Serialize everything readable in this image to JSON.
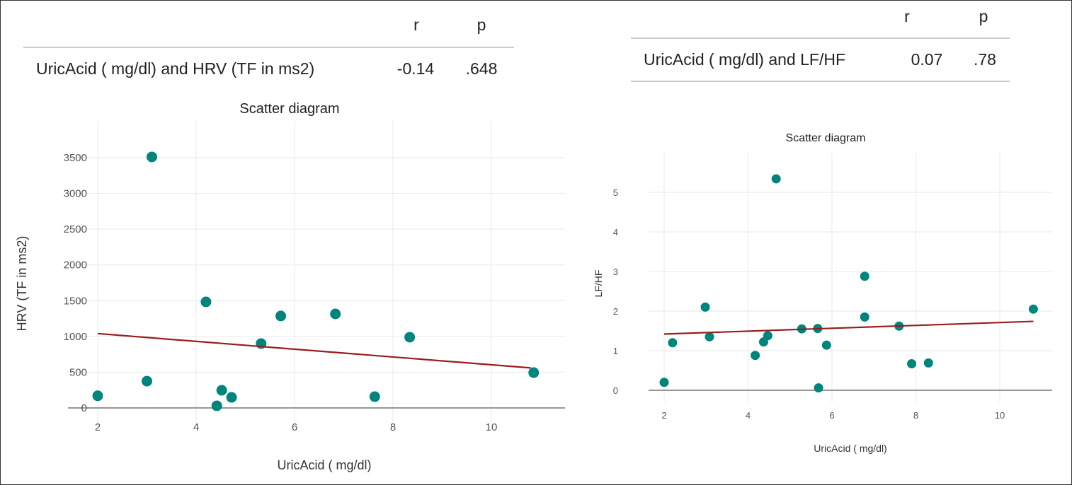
{
  "chart_data": [
    {
      "type": "scatter",
      "table": {
        "headers": [
          "r",
          "p"
        ],
        "row_label": "UricAcid ( mg/dl) and HRV (TF in ms2)",
        "r": "-0.14",
        "p": ".648"
      },
      "title": "Scatter diagram",
      "xlabel": "UricAcid ( mg/dl)",
      "ylabel": "HRV (TF in ms2)",
      "xticks": [
        2,
        4,
        6,
        8,
        10
      ],
      "yticks": [
        0,
        500,
        1000,
        1500,
        2000,
        2500,
        3000,
        3500
      ],
      "xlim": [
        1.3,
        11.4
      ],
      "ylim": [
        -200,
        3750
      ],
      "grid": true,
      "point_color": "#00857c",
      "line_color": "#9b1c1c",
      "points": [
        [
          2.0,
          170
        ],
        [
          3.0,
          375
        ],
        [
          3.1,
          3510
        ],
        [
          4.2,
          1483
        ],
        [
          4.42,
          30
        ],
        [
          4.52,
          247
        ],
        [
          4.72,
          148
        ],
        [
          5.32,
          900
        ],
        [
          5.72,
          1286
        ],
        [
          6.83,
          1315
        ],
        [
          7.63,
          158
        ],
        [
          8.34,
          989
        ],
        [
          10.86,
          494
        ]
      ],
      "trend": [
        [
          2.0,
          1040
        ],
        [
          10.8,
          560
        ]
      ]
    },
    {
      "type": "scatter",
      "table": {
        "headers": [
          "r",
          "p"
        ],
        "row_label": "UricAcid ( mg/dl) and LF/HF",
        "r": "0.07",
        "p": ".78"
      },
      "title": "Scatter diagram",
      "xlabel": "UricAcid ( mg/dl)",
      "ylabel": "LF/HF",
      "xticks": [
        2,
        4,
        6,
        8,
        10
      ],
      "yticks": [
        0,
        1,
        2,
        3,
        4,
        5
      ],
      "xlim": [
        1.3,
        11.4
      ],
      "ylim": [
        -0.35,
        5.6
      ],
      "grid": true,
      "point_color": "#00857c",
      "line_color": "#9b1c1c",
      "points": [
        [
          2.0,
          0.2
        ],
        [
          2.2,
          1.2
        ],
        [
          2.98,
          2.1
        ],
        [
          3.08,
          1.35
        ],
        [
          4.17,
          0.88
        ],
        [
          4.37,
          1.22
        ],
        [
          4.47,
          1.38
        ],
        [
          4.67,
          5.34
        ],
        [
          5.28,
          1.55
        ],
        [
          5.66,
          1.56
        ],
        [
          5.68,
          0.06
        ],
        [
          5.87,
          1.14
        ],
        [
          6.78,
          2.88
        ],
        [
          6.78,
          1.85
        ],
        [
          7.6,
          1.62
        ],
        [
          7.9,
          0.67
        ],
        [
          8.3,
          0.69
        ],
        [
          10.8,
          2.05
        ]
      ],
      "trend": [
        [
          2.0,
          1.42
        ],
        [
          10.8,
          1.74
        ]
      ]
    }
  ]
}
